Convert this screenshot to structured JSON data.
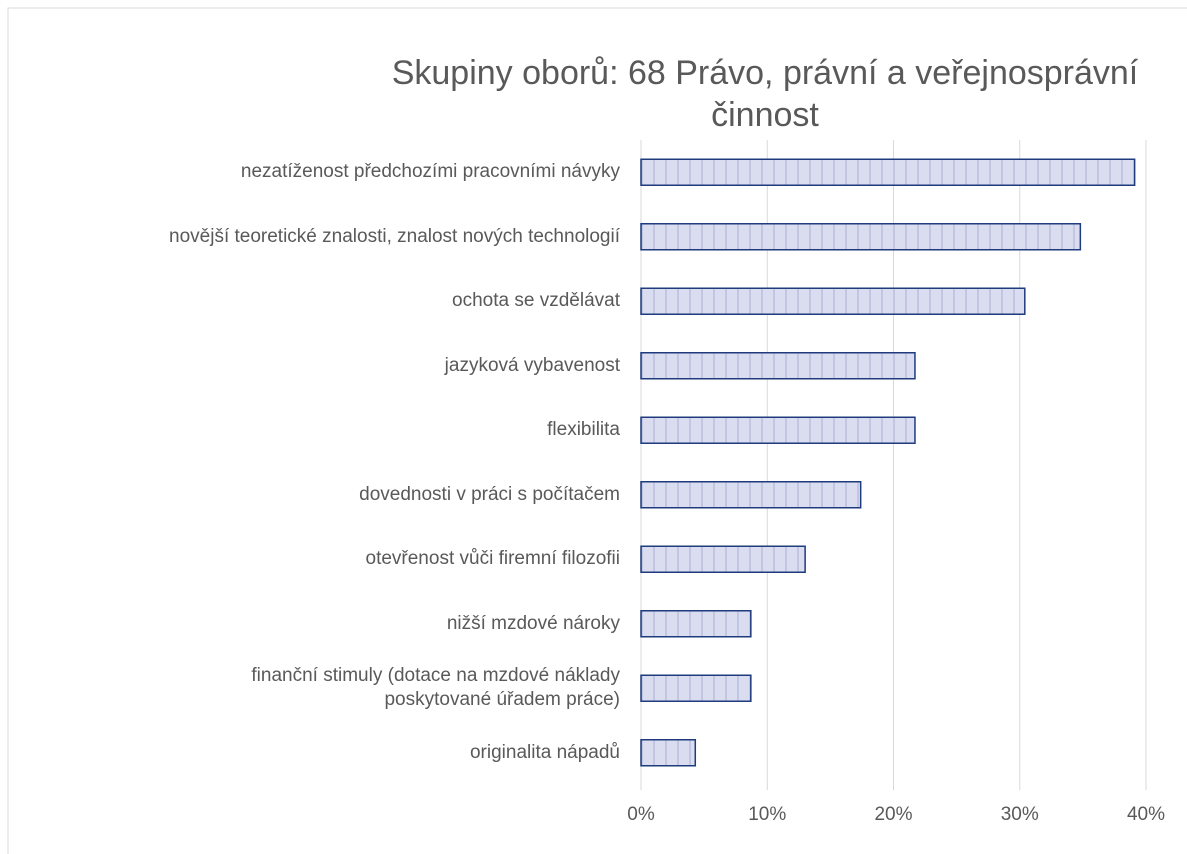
{
  "chart_data": {
    "type": "barh",
    "title": "Skupiny oborů: 68 Právo, právní a veřejnosprávní činnost",
    "categories": [
      "nezatíženost předchozími pracovními návyky",
      "novější teoretické znalosti, znalost nových technologií",
      "ochota se vzdělávat",
      "jazyková vybavenost",
      "flexibilita",
      "dovednosti v práci s počítačem",
      "otevřenost vůči firemní filozofii",
      "nižší mzdové nároky",
      "finanční stimuly (dotace na mzdové náklady\nposkytované úřadem práce)",
      "originalita nápadů"
    ],
    "values": [
      39.1,
      34.8,
      30.4,
      21.7,
      21.7,
      17.4,
      13.0,
      8.7,
      8.7,
      4.3
    ],
    "color": "#dadcf0",
    "edge_color": "#1f3b7d",
    "xlim": [
      0,
      40
    ],
    "xticks": [
      {
        "value": 0,
        "label": "0%"
      },
      {
        "value": 10,
        "label": "10%"
      },
      {
        "value": 20,
        "label": "20%"
      },
      {
        "value": 30,
        "label": "30%"
      },
      {
        "value": 40,
        "label": "40%"
      }
    ],
    "grid": true
  }
}
